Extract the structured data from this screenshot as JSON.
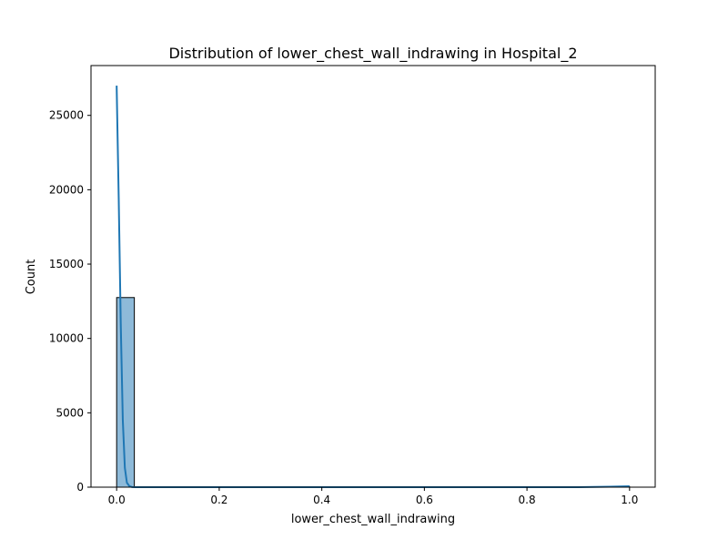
{
  "chart_data": {
    "type": "bar",
    "title": "Distribution of lower_chest_wall_indrawing in Hospital_2",
    "xlabel": "lower_chest_wall_indrawing",
    "ylabel": "Count",
    "xlim": [
      -0.05,
      1.05
    ],
    "ylim": [
      0,
      28350
    ],
    "x_ticks": [
      0.0,
      0.2,
      0.4,
      0.6,
      0.8,
      1.0
    ],
    "x_tick_labels": [
      "0.0",
      "0.2",
      "0.4",
      "0.6",
      "0.8",
      "1.0"
    ],
    "y_ticks": [
      0,
      5000,
      10000,
      15000,
      20000,
      25000
    ],
    "y_tick_labels": [
      "0",
      "5000",
      "10000",
      "15000",
      "20000",
      "25000"
    ],
    "bins": [
      {
        "x0": 0.0,
        "x1": 0.0345,
        "count": 12750
      },
      {
        "x0": 0.9655,
        "x1": 1.0,
        "count": 40
      }
    ],
    "kde": {
      "x": [
        0.0,
        0.004,
        0.008,
        0.012,
        0.016,
        0.02,
        0.025,
        0.03,
        0.035,
        0.05,
        0.1,
        0.3,
        0.5,
        0.7,
        0.9,
        0.96,
        1.0
      ],
      "y": [
        27000,
        19500,
        11000,
        4500,
        1300,
        300,
        60,
        10,
        0,
        0,
        0,
        0,
        0,
        0,
        0,
        30,
        60
      ]
    },
    "grid": false,
    "legend": "none",
    "colors": {
      "bar_fill": "#8ebad9",
      "bar_edge": "#000000",
      "kde_line": "#1f77b4",
      "axes": "#000000"
    }
  }
}
